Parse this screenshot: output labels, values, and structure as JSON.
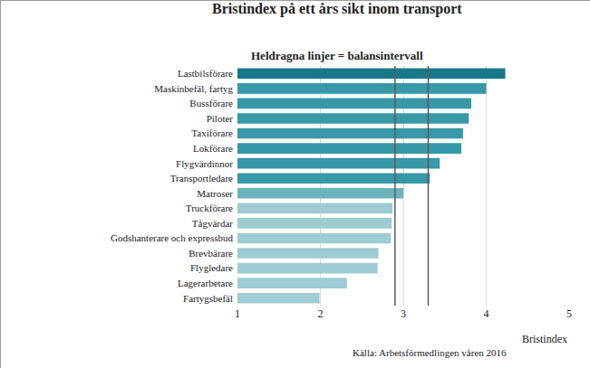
{
  "chart_data": {
    "type": "bar",
    "orientation": "horizontal",
    "title": "Bristindex på ett års sikt inom transport",
    "subtitle": "Heldragna linjer = balansintervall",
    "xlabel": "Bristindex",
    "source": "Källa: Arbetsförmedlingen våren 2016",
    "categories": [
      "Lastbilsförare",
      "Maskinbefäl, fartyg",
      "Bussförare",
      "Piloter",
      "Taxiförare",
      "Lokförare",
      "Flygvärdinnor",
      "Transportledare",
      "Matroser",
      "Truckförare",
      "Tågvärdar",
      "Godshanterare och expressbud",
      "Brevbärare",
      "Flygledare",
      "Lagerarbetare",
      "Fartygsbefäl"
    ],
    "values": [
      4.23,
      4.0,
      3.82,
      3.79,
      3.72,
      3.7,
      3.44,
      3.32,
      3.0,
      2.87,
      2.86,
      2.85,
      2.7,
      2.69,
      2.32,
      1.99
    ],
    "colors": [
      "#17788a",
      "#3798a8",
      "#3798a8",
      "#3798a8",
      "#3798a8",
      "#3798a8",
      "#3798a8",
      "#3798a8",
      "#6db3be",
      "#9fcbd3",
      "#9fcbd3",
      "#9fcbd3",
      "#9fcbd3",
      "#9fcbd3",
      "#9fcbd3",
      "#9fcbd3"
    ],
    "balance_interval": [
      2.9,
      3.3
    ],
    "xlim": [
      1,
      5
    ],
    "xticks": [
      1,
      2,
      3,
      4,
      5
    ],
    "grid": true
  }
}
